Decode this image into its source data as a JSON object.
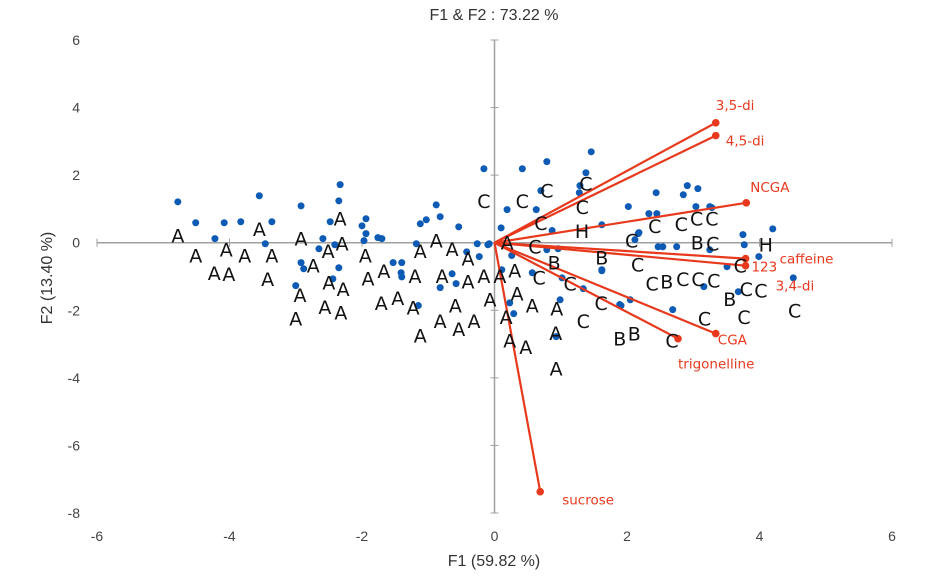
{
  "chart_data": {
    "type": "scatter",
    "title": "F1 & F2 : 73.22 %",
    "xlabel": "F1 (59.82 %)",
    "ylabel": "F2 (13.40 %)",
    "xlim": [
      -6,
      6
    ],
    "ylim": [
      -8,
      6
    ],
    "xticks": [
      "-6",
      "-4",
      "-2",
      "0",
      "2",
      "4",
      "6"
    ],
    "yticks": [
      "6",
      "4",
      "2",
      "0",
      "-2",
      "-4",
      "-6",
      "-8"
    ],
    "grid": false,
    "legend": "none",
    "colors": {
      "points": "#0d5bb5",
      "vectors": "#e8391d",
      "axes": "#a0a0a0",
      "labels": "#111111"
    },
    "points": [
      [
        -4.78,
        1.21
      ],
      [
        -4.51,
        0.59
      ],
      [
        -4.08,
        0.59
      ],
      [
        -3.83,
        0.62
      ],
      [
        -3.55,
        1.39
      ],
      [
        -3.36,
        0.62
      ],
      [
        -4.22,
        0.12
      ],
      [
        -3.46,
        -0.03
      ],
      [
        -2.92,
        1.09
      ],
      [
        -2.92,
        -0.59
      ],
      [
        -2.88,
        -0.77
      ],
      [
        -3.0,
        -1.27
      ],
      [
        -2.33,
        1.72
      ],
      [
        -2.35,
        1.24
      ],
      [
        -2.48,
        0.62
      ],
      [
        -2.59,
        0.12
      ],
      [
        -2.65,
        -0.18
      ],
      [
        -2.41,
        -0.06
      ],
      [
        -2.35,
        -0.74
      ],
      [
        -2.44,
        -1.07
      ],
      [
        -1.94,
        0.71
      ],
      [
        -2.0,
        0.5
      ],
      [
        -1.94,
        0.27
      ],
      [
        -1.97,
        0.06
      ],
      [
        -1.76,
        0.15
      ],
      [
        -1.7,
        0.12
      ],
      [
        -1.53,
        -0.59
      ],
      [
        -1.4,
        -0.59
      ],
      [
        -1.41,
        -0.89
      ],
      [
        -1.4,
        -1.01
      ],
      [
        -1.18,
        -0.03
      ],
      [
        -1.15,
        -1.86
      ],
      [
        -1.12,
        0.56
      ],
      [
        -1.03,
        0.68
      ],
      [
        -0.88,
        1.12
      ],
      [
        -0.82,
        0.77
      ],
      [
        -0.54,
        0.47
      ],
      [
        -0.82,
        -1.33
      ],
      [
        -0.64,
        -0.92
      ],
      [
        -0.58,
        -1.21
      ],
      [
        -0.42,
        -0.27
      ],
      [
        -0.26,
        -0.03
      ],
      [
        -0.23,
        -0.41
      ],
      [
        -0.08,
        -0.03
      ],
      [
        -0.16,
        2.19
      ],
      [
        0.42,
        2.19
      ],
      [
        0.79,
        2.4
      ],
      [
        1.46,
        2.69
      ],
      [
        1.38,
        2.07
      ],
      [
        1.29,
        1.69
      ],
      [
        1.28,
        1.48
      ],
      [
        0.7,
        1.54
      ],
      [
        0.63,
        0.98
      ],
      [
        0.19,
        0.98
      ],
      [
        0.1,
        0.44
      ],
      [
        0.87,
        0.36
      ],
      [
        1.62,
        0.53
      ],
      [
        2.02,
        1.07
      ],
      [
        2.44,
        1.48
      ],
      [
        2.33,
        0.86
      ],
      [
        2.45,
        0.86
      ],
      [
        2.17,
        0.27
      ],
      [
        2.12,
        0.09
      ],
      [
        2.47,
        -0.12
      ],
      [
        2.75,
        -0.12
      ],
      [
        -0.1,
        -0.06
      ],
      [
        0.26,
        -0.38
      ],
      [
        0.79,
        -0.21
      ],
      [
        0.96,
        -0.18
      ],
      [
        0.11,
        -0.8
      ],
      [
        0.57,
        -0.89
      ],
      [
        1.02,
        -1.04
      ],
      [
        1.62,
        -0.8
      ],
      [
        1.34,
        -1.36
      ],
      [
        0.99,
        -1.69
      ],
      [
        0.23,
        -1.78
      ],
      [
        0.29,
        -2.1
      ],
      [
        1.89,
        -1.83
      ],
      [
        2.05,
        -1.69
      ],
      [
        2.69,
        -1.98
      ],
      [
        0.93,
        -2.78
      ],
      [
        2.91,
        1.69
      ],
      [
        3.07,
        1.6
      ],
      [
        2.85,
        1.42
      ],
      [
        3.04,
        1.07
      ],
      [
        3.25,
        1.07
      ],
      [
        3.28,
        1.04
      ],
      [
        2.18,
        0.3
      ],
      [
        2.54,
        -0.12
      ],
      [
        3.25,
        -0.21
      ],
      [
        3.75,
        0.24
      ],
      [
        3.77,
        -0.06
      ],
      [
        4.2,
        0.41
      ],
      [
        3.99,
        -0.41
      ],
      [
        3.51,
        -0.71
      ],
      [
        3.16,
        -1.3
      ],
      [
        3.68,
        -1.45
      ],
      [
        4.51,
        -1.04
      ],
      [
        1.91,
        -1.86
      ],
      [
        1.62,
        -0.83
      ]
    ],
    "observation_labels": [
      [
        "A",
        -4.78,
        0.21
      ],
      [
        "A",
        -4.51,
        -0.38
      ],
      [
        "A",
        -4.23,
        -0.89
      ],
      [
        "A",
        -4.22,
        -0.92
      ],
      [
        "A",
        -4.05,
        -0.38
      ],
      [
        "A",
        -3.83,
        -0.38
      ],
      [
        "A",
        -3.55,
        0.41
      ],
      [
        "A",
        -3.36,
        -0.38
      ],
      [
        "A",
        -3.44,
        -1.04
      ],
      [
        "A",
        -2.92,
        0.12
      ],
      [
        "A",
        -3.0,
        -2.25
      ],
      [
        "A",
        -2.92,
        -1.57
      ],
      [
        "A",
        -2.33,
        0.71
      ],
      [
        "A",
        -2.33,
        0.21
      ],
      [
        "A",
        -2.33,
        -0.24
      ],
      [
        "A",
        -2.51,
        -0.38
      ],
      [
        "A",
        -2.59,
        -1.18
      ],
      [
        "A",
        -2.56,
        -1.72
      ],
      [
        "A",
        -2.41,
        -2.07
      ],
      [
        "A",
        -2.33,
        -1.72
      ],
      [
        "A",
        -1.95,
        -0.38
      ],
      [
        "A",
        -1.91,
        -0.77
      ],
      [
        "A",
        -1.73,
        -0.83
      ],
      [
        "A",
        -1.71,
        -1.78
      ],
      [
        "A",
        -1.46,
        -1.63
      ],
      [
        "A",
        -1.38,
        -1.92
      ],
      [
        "A",
        -1.2,
        -0.98
      ],
      [
        "A",
        -1.12,
        -2.75
      ],
      [
        "A",
        -0.88,
        0.06
      ],
      [
        "A",
        -0.97,
        -0.24
      ],
      [
        "A",
        -0.82,
        -0.18
      ],
      [
        "A",
        -0.79,
        -0.98
      ],
      [
        "A",
        -0.59,
        -1.86
      ],
      [
        "A",
        -0.82,
        -2.31
      ],
      [
        "A",
        -0.57,
        -2.31
      ],
      [
        "A",
        -0.34,
        -2.31
      ],
      [
        "A",
        -0.52,
        -0.47
      ],
      [
        "A",
        -0.22,
        -0.98
      ],
      [
        "A",
        -0.07,
        -0.98
      ],
      [
        "A",
        -0.4,
        -1.27
      ],
      [
        "A",
        -0.25,
        -1.27
      ],
      [
        "A",
        0.19,
        0.0
      ],
      [
        "A",
        0.11,
        -0.53
      ],
      [
        "A",
        0.25,
        -1.36
      ],
      [
        "A",
        0.16,
        -1.78
      ],
      [
        "A",
        0.23,
        -2.72
      ],
      [
        "A",
        0.29,
        -3.08
      ],
      [
        "A",
        0.57,
        -1.86
      ],
      [
        "A",
        0.94,
        -1.95
      ],
      [
        "A",
        0.88,
        -2.31
      ],
      [
        "A",
        0.93,
        -3.73
      ],
      [
        "C",
        -0.16,
        1.24
      ],
      [
        "C",
        0.42,
        1.24
      ],
      [
        "C",
        0.79,
        1.54
      ],
      [
        "C",
        1.38,
        1.75
      ],
      [
        "C",
        1.31,
        1.09
      ],
      [
        "H",
        1.29,
        0.59
      ],
      [
        "C",
        0.7,
        0.59
      ],
      [
        "C",
        0.61,
        0.0
      ],
      [
        "B",
        0.9,
        -0.59
      ],
      [
        "B",
        1.62,
        -0.44
      ],
      [
        "C",
        0.81,
        -1.18
      ],
      [
        "C",
        0.99,
        -1.21
      ],
      [
        "C",
        1.34,
        -2.31
      ],
      [
        "C",
        1.61,
        -1.78
      ],
      [
        "B",
        1.89,
        -2.84
      ],
      [
        "B",
        2.05,
        -2.69
      ],
      [
        "C",
        2.07,
        0.06
      ],
      [
        "C",
        2.42,
        0.5
      ],
      [
        "C",
        2.16,
        -0.59
      ],
      [
        "C",
        2.38,
        -1.21
      ],
      [
        "B",
        2.45,
        -1.15
      ],
      [
        "C",
        2.54,
        -1.07
      ],
      [
        "C",
        2.77,
        -1.07
      ],
      [
        "C",
        2.68,
        -2.9
      ],
      [
        "C",
        2.82,
        0.56
      ],
      [
        "C",
        2.93,
        0.71
      ],
      [
        "C",
        3.04,
        0.71
      ],
      [
        "B",
        3.06,
        0.06
      ],
      [
        "C",
        3.25,
        0.06
      ],
      [
        "C",
        3.22,
        -1.12
      ],
      [
        "B",
        3.49,
        -1.66
      ],
      [
        "C",
        3.17,
        -2.25
      ],
      [
        "C",
        3.66,
        -2.46
      ],
      [
        "C",
        3.71,
        -0.68
      ],
      [
        "C",
        3.74,
        -0.89
      ],
      [
        "C",
        3.96,
        -1.42
      ],
      [
        "C",
        4.53,
        -2.01
      ],
      [
        "H",
        4.14,
        -0.59
      ]
    ],
    "variables": [
      {
        "name": "3,5-di",
        "x": 3.34,
        "y": 3.55
      },
      {
        "name": "4,5-di",
        "x": 3.34,
        "y": 3.17
      },
      {
        "name": "NCGA",
        "x": 3.8,
        "y": 1.18
      },
      {
        "name": "caffeine",
        "x": 3.79,
        "y": -0.47
      },
      {
        "name": "3,4-di",
        "x": 3.79,
        "y": -0.68
      },
      {
        "name": "CGA",
        "x": 3.34,
        "y": -2.69
      },
      {
        "name": "trigonelline",
        "x": 2.77,
        "y": -2.84
      },
      {
        "name": "sucrose",
        "x": 0.69,
        "y": -7.37
      }
    ],
    "annotations": [
      {
        "text": "123",
        "x": 4.15,
        "y": -0.7
      }
    ]
  }
}
